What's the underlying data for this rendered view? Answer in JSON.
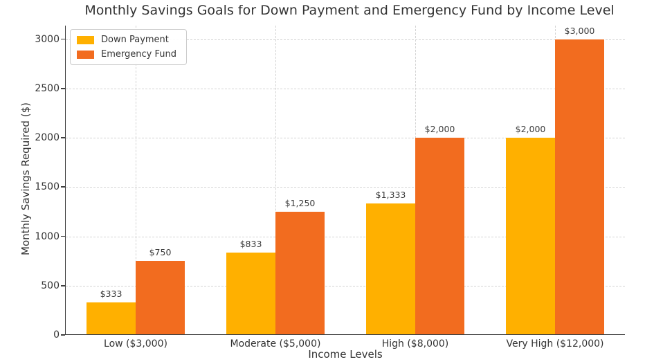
{
  "chart_data": {
    "type": "bar",
    "title": "Monthly Savings Goals for Down Payment and Emergency Fund by Income Level",
    "xlabel": "Income Levels",
    "ylabel": "Monthly Savings Required ($)",
    "categories": [
      "Low ($3,000)",
      "Moderate ($5,000)",
      "High ($8,000)",
      "Very High ($12,000)"
    ],
    "series": [
      {
        "name": "Down Payment",
        "color": "#FFB000",
        "values": [
          333,
          833,
          1333,
          2000
        ],
        "value_labels": [
          "$333",
          "$833",
          "$1,333",
          "$2,000"
        ]
      },
      {
        "name": "Emergency Fund",
        "color": "#F26C1F",
        "values": [
          750,
          1250,
          2000,
          3000
        ],
        "value_labels": [
          "$750",
          "$1,250",
          "$2,000",
          "$3,000"
        ]
      }
    ],
    "yticks": [
      0,
      500,
      1000,
      1500,
      2000,
      2500,
      3000
    ],
    "ylim": [
      0,
      3135
    ],
    "grid": true,
    "grid_style": "dashed",
    "legend_position": "upper-left",
    "colors": {
      "grid": "#d3d3d3",
      "spine": "#3f3f3f",
      "text": "#333333"
    }
  }
}
